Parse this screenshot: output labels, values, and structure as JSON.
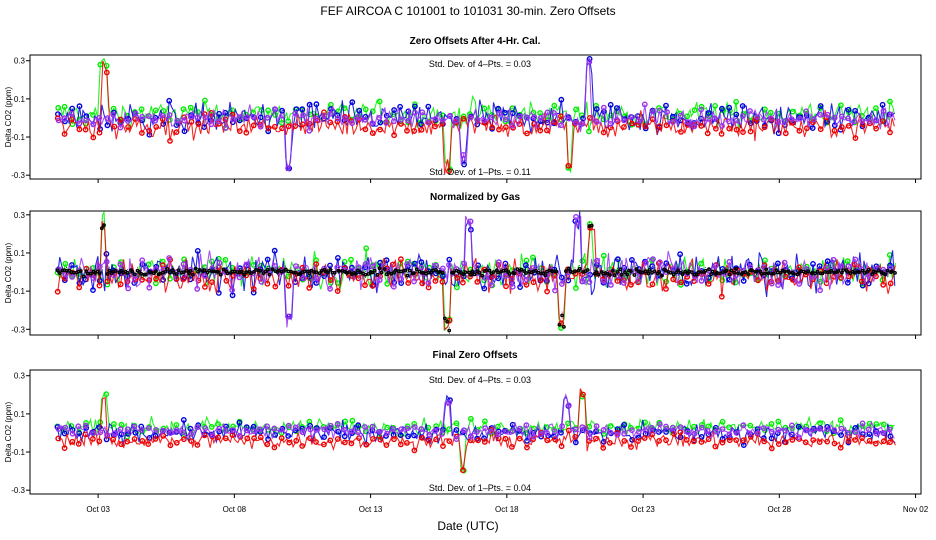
{
  "chart_data": {
    "type": "scatter",
    "title": "FEF   AIRCOA C   101001 to 101031   30-min. Zero Offsets",
    "xlabel": "Date (UTC)",
    "x_tick_labels": [
      "Oct 03",
      "Oct 08",
      "Oct 13",
      "Oct 18",
      "Oct 23",
      "Oct 28",
      "Nov 02"
    ],
    "x_tick_days": [
      3,
      8,
      13,
      18,
      23,
      28,
      33
    ],
    "xlim_days": [
      0.5,
      33.2
    ],
    "data_range_days": [
      1.5,
      32.3
    ],
    "series_colors": {
      "green": "#00ee00",
      "blue": "#0000dd",
      "red": "#ee0000",
      "purple": "#9933ee",
      "black": "#000000"
    },
    "panels": [
      {
        "title": "Zero Offsets After 4-Hr. Cal.",
        "ylabel": "Delta CO2 (ppm)",
        "ylim": [
          -0.32,
          0.33
        ],
        "yticks": [
          0.3,
          0.1,
          -0.1,
          -0.3
        ],
        "ytick_labels": [
          "0.3",
          "0.1",
          "-0.1",
          "-0.3"
        ],
        "stat_top": "Std. Dev. of 4–Pts. =  0.03",
        "stat_bottom": "Std. Dev. of 1–Pts. =  0.11",
        "series": [
          {
            "name": "green",
            "offset": 0.02,
            "spread": 0.045
          },
          {
            "name": "blue",
            "offset": 0.0,
            "spread": 0.055
          },
          {
            "name": "red",
            "offset": -0.04,
            "spread": 0.045
          },
          {
            "name": "purple",
            "offset": 0.0,
            "spread": 0.035
          }
        ],
        "spike_days": [
          3.2,
          10.0,
          15.8,
          16.4,
          20.3,
          21.0
        ],
        "spike_heights": [
          0.33,
          -0.3,
          -0.3,
          -0.25,
          -0.3,
          0.33
        ]
      },
      {
        "title": "Normalized by Gas",
        "ylabel": "Delta CO2 (ppm)",
        "ylim": [
          -0.33,
          0.32
        ],
        "yticks": [
          0.3,
          0.1,
          -0.1,
          -0.3
        ],
        "ytick_labels": [
          "0.3",
          "0.1",
          "-0.1",
          "-0.3"
        ],
        "stat_top": "",
        "stat_bottom": "",
        "series": [
          {
            "name": "green",
            "offset": 0.0,
            "spread": 0.06
          },
          {
            "name": "blue",
            "offset": 0.0,
            "spread": 0.07
          },
          {
            "name": "red",
            "offset": -0.02,
            "spread": 0.06
          },
          {
            "name": "purple",
            "offset": 0.0,
            "spread": 0.06
          },
          {
            "name": "black",
            "offset": 0.0,
            "spread": 0.012
          }
        ],
        "spike_days": [
          3.2,
          10.0,
          15.8,
          16.6,
          20.0,
          20.6,
          21.1
        ],
        "spike_heights": [
          0.32,
          -0.3,
          -0.31,
          0.3,
          -0.3,
          0.32,
          0.28
        ]
      },
      {
        "title": "Final Zero Offsets",
        "ylabel": "Delta CO2 (ppm)",
        "ylim": [
          -0.32,
          0.33
        ],
        "yticks": [
          0.3,
          0.1,
          -0.1,
          -0.3
        ],
        "ytick_labels": [
          "0.3",
          "0.1",
          "-0.1",
          "-0.3"
        ],
        "stat_top": "Std. Dev. of 4–Pts. =  0.03",
        "stat_bottom": "Std. Dev. of 1–Pts. =  0.04",
        "series": [
          {
            "name": "green",
            "offset": 0.03,
            "spread": 0.03
          },
          {
            "name": "blue",
            "offset": 0.0,
            "spread": 0.035
          },
          {
            "name": "red",
            "offset": -0.04,
            "spread": 0.03
          },
          {
            "name": "purple",
            "offset": 0.01,
            "spread": 0.025
          }
        ],
        "spike_days": [
          3.2,
          15.8,
          16.4,
          20.2,
          20.8
        ],
        "spike_heights": [
          0.22,
          0.2,
          -0.2,
          0.2,
          0.24
        ]
      }
    ]
  }
}
